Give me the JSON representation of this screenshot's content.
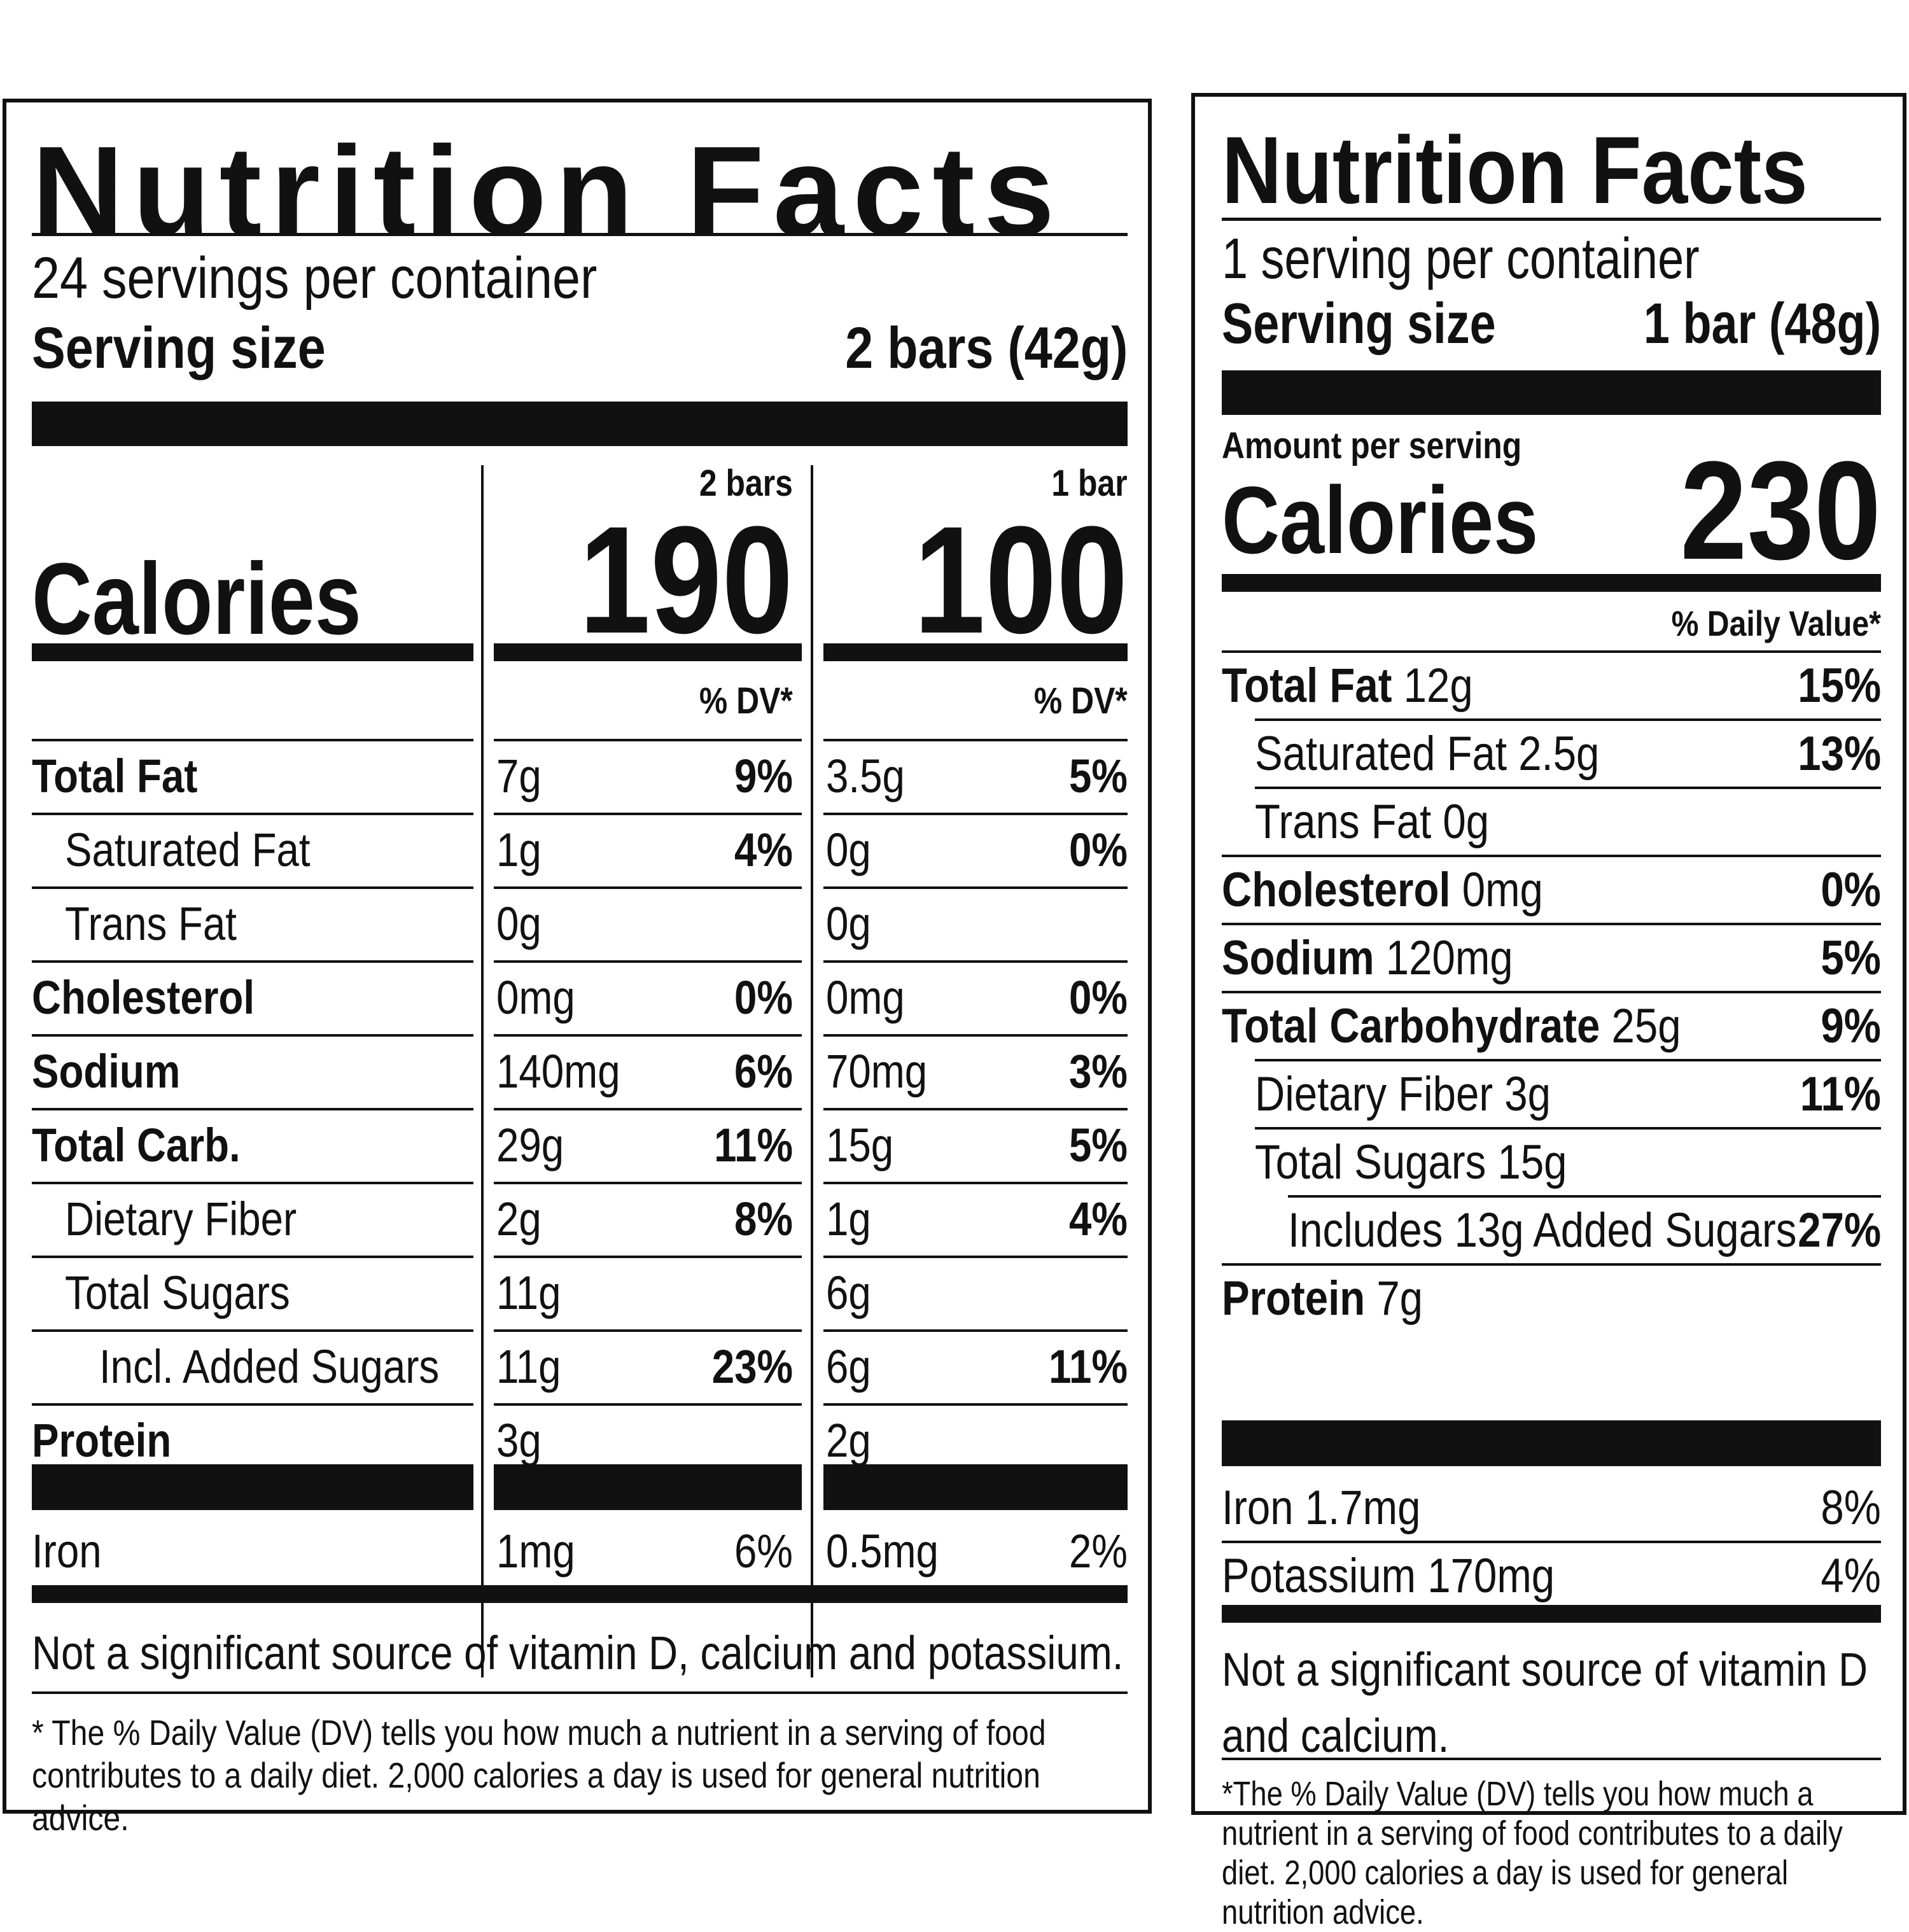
{
  "left": {
    "title": "Nutrition Facts",
    "servings": "24 servings per container",
    "serving_size_label": "Serving size",
    "serving_size_value": "2 bars (42g)",
    "calories_label": "Calories",
    "columns": [
      {
        "header": "2 bars",
        "calories": "190",
        "dv_header": "% DV*"
      },
      {
        "header": "1 bar",
        "calories": "100",
        "dv_header": "% DV*"
      }
    ],
    "rows": [
      {
        "label": "Total Fat",
        "bold": true,
        "indent": 0,
        "c1": "7g",
        "p1": "9%",
        "c2": "3.5g",
        "p2": "5%"
      },
      {
        "label": "Saturated Fat",
        "bold": false,
        "indent": 1,
        "c1": "1g",
        "p1": "4%",
        "c2": "0g",
        "p2": "0%"
      },
      {
        "label": "Trans Fat",
        "bold": false,
        "indent": 1,
        "c1": "0g",
        "p1": "",
        "c2": "0g",
        "p2": ""
      },
      {
        "label": "Cholesterol",
        "bold": true,
        "indent": 0,
        "c1": "0mg",
        "p1": "0%",
        "c2": "0mg",
        "p2": "0%"
      },
      {
        "label": "Sodium",
        "bold": true,
        "indent": 0,
        "c1": "140mg",
        "p1": "6%",
        "c2": "70mg",
        "p2": "3%"
      },
      {
        "label": "Total Carb.",
        "bold": true,
        "indent": 0,
        "c1": "29g",
        "p1": "11%",
        "c2": "15g",
        "p2": "5%"
      },
      {
        "label": "Dietary Fiber",
        "bold": false,
        "indent": 1,
        "c1": "2g",
        "p1": "8%",
        "c2": "1g",
        "p2": "4%"
      },
      {
        "label": "Total Sugars",
        "bold": false,
        "indent": 1,
        "c1": "11g",
        "p1": "",
        "c2": "6g",
        "p2": ""
      },
      {
        "label": "Incl. Added Sugars",
        "bold": false,
        "indent": 2,
        "c1": "11g",
        "p1": "23%",
        "c2": "6g",
        "p2": "11%"
      },
      {
        "label": "Protein",
        "bold": true,
        "indent": 0,
        "c1": "3g",
        "p1": "",
        "c2": "2g",
        "p2": ""
      }
    ],
    "iron": {
      "label": "Iron",
      "c1": "1mg",
      "p1": "6%",
      "c2": "0.5mg",
      "p2": "2%"
    },
    "footnote_main": "Not a significant source of vitamin D, calcium and potassium.",
    "footnote_dv": "* The % Daily Value (DV) tells you how much a nutrient in a serving of food contributes to a daily diet. 2,000 calories a day is used for general nutrition advice."
  },
  "right": {
    "title": "Nutrition Facts",
    "servings": "1 serving per container",
    "serving_size_label": "Serving size",
    "serving_size_value": "1 bar (48g)",
    "amount_per_serving": "Amount per serving",
    "calories_label": "Calories",
    "calories": "230",
    "dv_header": "% Daily Value*",
    "rows": [
      {
        "name": "Total Fat",
        "amount": "12g",
        "bold": true,
        "indent": 0,
        "pct": "15%"
      },
      {
        "name": "Saturated Fat",
        "amount": "2.5g",
        "bold": false,
        "indent": 1,
        "pct": "13%"
      },
      {
        "name": "Trans Fat",
        "amount": "0g",
        "bold": false,
        "indent": 1,
        "pct": ""
      },
      {
        "name": "Cholesterol",
        "amount": "0mg",
        "bold": true,
        "indent": 0,
        "pct": "0%"
      },
      {
        "name": "Sodium",
        "amount": "120mg",
        "bold": true,
        "indent": 0,
        "pct": "5%"
      },
      {
        "name": "Total Carbohydrate",
        "amount": "25g",
        "bold": true,
        "indent": 0,
        "pct": "9%"
      },
      {
        "name": "Dietary Fiber",
        "amount": "3g",
        "bold": false,
        "indent": 1,
        "pct": "11%"
      },
      {
        "name": "Total Sugars",
        "amount": "15g",
        "bold": false,
        "indent": 1,
        "pct": ""
      },
      {
        "name": "Includes 13g Added Sugars",
        "amount": "",
        "bold": false,
        "indent": 2,
        "pct": "27%"
      },
      {
        "name": "Protein",
        "amount": "7g",
        "bold": true,
        "indent": 0,
        "pct": ""
      }
    ],
    "minerals": [
      {
        "name": "Iron",
        "amount": "1.7mg",
        "pct": "8%"
      },
      {
        "name": "Potassium",
        "amount": "170mg",
        "pct": "4%"
      }
    ],
    "footnote_main": "Not a significant source of vitamin D and calcium.",
    "footnote_dv": "*The % Daily Value (DV) tells you how much a nutrient in a serving of food contributes to a daily diet. 2,000 calories a day is used for general nutrition advice."
  }
}
